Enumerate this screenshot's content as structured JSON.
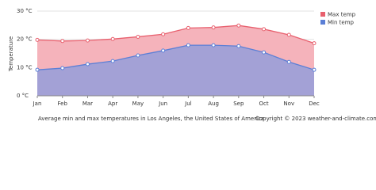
{
  "chart_data": {
    "type": "area",
    "y_label": "Temperature",
    "categories": [
      "Jan",
      "Feb",
      "Mar",
      "Apr",
      "May",
      "Jun",
      "Jul",
      "Aug",
      "Sep",
      "Oct",
      "Nov",
      "Dec"
    ],
    "series": [
      {
        "name": "Max temp",
        "color": "#e8606e",
        "fill": "#f5b3bb",
        "values": [
          19.8,
          19.4,
          19.6,
          20.1,
          20.9,
          21.8,
          24.0,
          24.2,
          24.9,
          23.6,
          21.6,
          18.6
        ]
      },
      {
        "name": "Min temp",
        "color": "#5b7fd6",
        "fill": "#a3a1d6",
        "values": [
          9.2,
          9.8,
          11.2,
          12.3,
          14.3,
          16.0,
          17.9,
          17.9,
          17.6,
          15.4,
          12.0,
          9.2
        ]
      }
    ],
    "ylim": [
      0,
      30
    ],
    "yticks": [
      {
        "value": 0,
        "label": "0 °C"
      },
      {
        "value": 10,
        "label": "10 °C"
      },
      {
        "value": 20,
        "label": "20 °C"
      },
      {
        "value": 30,
        "label": "30 °C"
      }
    ],
    "grid": true,
    "legend": "top-right",
    "caption": "Average min and max temperatures in Los Angeles, the United States of America",
    "copyright": "Copyright © 2023  weather-and-climate.com"
  }
}
